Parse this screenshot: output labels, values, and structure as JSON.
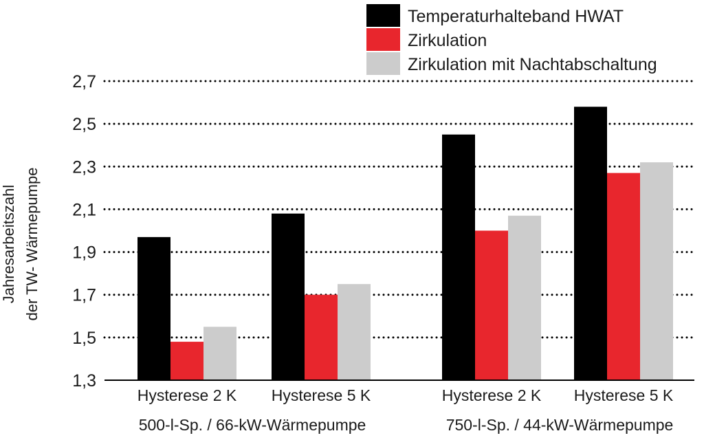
{
  "chart_data": {
    "type": "bar",
    "title": "",
    "xlabel": "",
    "ylabel": [
      "Jahresarbeitszahl",
      "der  TW- Wärmepumpe"
    ],
    "ylim": [
      1.3,
      2.7
    ],
    "yticks": [
      "1,3",
      "1,5",
      "1,7",
      "1,9",
      "2,1",
      "2,3",
      "2,5",
      "2,7"
    ],
    "ytick_values": [
      1.3,
      1.5,
      1.7,
      1.9,
      2.1,
      2.3,
      2.5,
      2.7
    ],
    "grid": "dotted horizontal",
    "legend_position": "top-right",
    "categories": [
      "Hysterese 2 K",
      "Hysterese 5 K",
      "Hysterese 2 K",
      "Hysterese 5 K"
    ],
    "groups": [
      "500-l-Sp. / 66-kW-Wärmepumpe",
      "750-l-Sp. / 44-kW-Wärmepumpe"
    ],
    "series": [
      {
        "name": "Temperaturhalteband HWAT",
        "color": "#000000",
        "values": [
          1.97,
          2.08,
          2.45,
          2.58
        ]
      },
      {
        "name": "Zirkulation",
        "color": "#e8262d",
        "values": [
          1.48,
          1.7,
          2.0,
          2.27
        ]
      },
      {
        "name": "Zirkulation mit Nachtabschaltung",
        "color": "#cccccc",
        "values": [
          1.55,
          1.75,
          2.07,
          2.32
        ]
      }
    ]
  }
}
